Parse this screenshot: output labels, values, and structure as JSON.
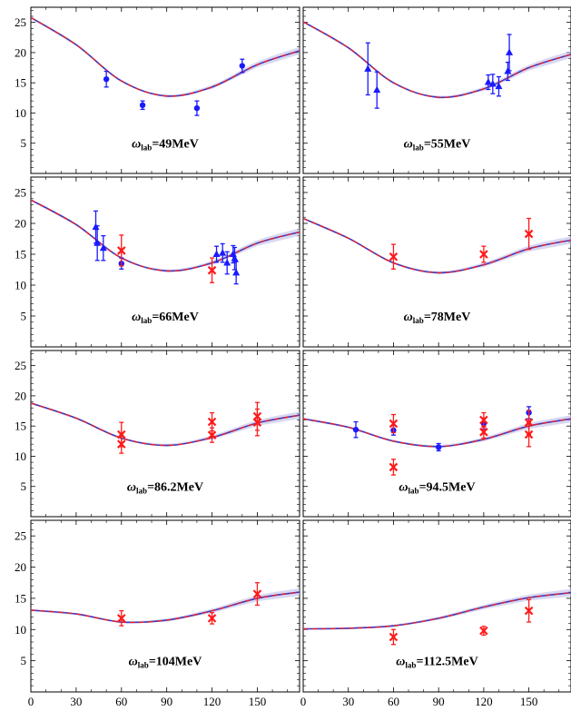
{
  "chart_data": {
    "type": "scatter",
    "layout": "4x2 grid of panels",
    "x_ticks": [
      "0",
      "30",
      "60",
      "90",
      "120",
      "150"
    ],
    "y_ticks": [
      "5",
      "10",
      "15",
      "20",
      "25"
    ],
    "xlim": [
      0,
      178
    ],
    "ylim": [
      0,
      27.5
    ],
    "grid": false,
    "colors": {
      "curve_red": "#e8202a",
      "curve_blue": "#3838c8",
      "band": "#b8b8e8",
      "data_blue": "#1a1aff",
      "data_red": "#ff1a1a"
    },
    "panels": [
      {
        "label_symbol": "ω",
        "label_sub": "lab",
        "label_value": "=49MeV",
        "curve": [
          [
            0,
            25.8
          ],
          [
            30,
            21.3
          ],
          [
            60,
            15.3
          ],
          [
            90,
            12.8
          ],
          [
            120,
            14.3
          ],
          [
            150,
            18.0
          ],
          [
            178,
            20.3
          ]
        ],
        "series": [
          {
            "color": "blue",
            "marker": "circle",
            "points": [
              [
                50,
                15.6,
                1.3
              ],
              [
                74,
                11.3,
                0.7
              ],
              [
                110,
                10.8,
                1.2
              ],
              [
                140,
                17.8,
                1.1
              ]
            ]
          }
        ]
      },
      {
        "label_symbol": "ω",
        "label_sub": "lab",
        "label_value": "=55MeV",
        "curve": [
          [
            0,
            25.1
          ],
          [
            30,
            20.8
          ],
          [
            60,
            15.0
          ],
          [
            90,
            12.6
          ],
          [
            120,
            14.0
          ],
          [
            150,
            17.5
          ],
          [
            178,
            19.7
          ]
        ],
        "series": [
          {
            "color": "blue",
            "marker": "triangle",
            "points": [
              [
                43,
                17.3,
                4.3
              ],
              [
                49,
                13.8,
                3.0
              ],
              [
                123,
                15.1,
                1.2
              ],
              [
                126,
                14.8,
                1.6
              ],
              [
                130,
                14.4,
                1.6
              ],
              [
                136,
                16.9,
                1.5
              ],
              [
                137,
                20.0,
                3.0
              ]
            ]
          }
        ]
      },
      {
        "label_symbol": "ω",
        "label_sub": "lab",
        "label_value": "=66MeV",
        "curve": [
          [
            0,
            23.8
          ],
          [
            30,
            19.8
          ],
          [
            60,
            14.4
          ],
          [
            90,
            12.3
          ],
          [
            120,
            13.6
          ],
          [
            150,
            16.8
          ],
          [
            178,
            18.6
          ]
        ],
        "series": [
          {
            "color": "blue",
            "marker": "triangle",
            "points": [
              [
                43,
                19.4,
                2.6
              ],
              [
                44,
                16.8,
                2.8
              ],
              [
                48,
                16.0,
                2.0
              ],
              [
                123,
                15.0,
                1.3
              ],
              [
                127,
                15.2,
                1.5
              ],
              [
                130,
                13.6,
                1.8
              ],
              [
                134,
                15.0,
                1.4
              ],
              [
                135,
                14.3,
                1.8
              ],
              [
                136,
                12.0,
                1.8
              ]
            ]
          },
          {
            "color": "blue",
            "marker": "circle",
            "points": [
              [
                60,
                13.5,
                0.9
              ]
            ]
          },
          {
            "color": "red",
            "marker": "x",
            "points": [
              [
                60,
                15.6,
                2.5
              ],
              [
                120,
                12.4,
                2.0
              ]
            ]
          }
        ]
      },
      {
        "label_symbol": "ω",
        "label_sub": "lab",
        "label_value": "=78MeV",
        "curve": [
          [
            0,
            20.8
          ],
          [
            30,
            17.6
          ],
          [
            60,
            13.6
          ],
          [
            90,
            12.0
          ],
          [
            120,
            13.3
          ],
          [
            150,
            15.9
          ],
          [
            178,
            17.3
          ]
        ],
        "series": [
          {
            "color": "red",
            "marker": "x",
            "points": [
              [
                60,
                14.6,
                2.0
              ],
              [
                120,
                15.0,
                1.3
              ],
              [
                150,
                18.3,
                2.5
              ]
            ]
          }
        ]
      },
      {
        "label_symbol": "ω",
        "label_sub": "lab",
        "label_value": "=86.2MeV",
        "curve": [
          [
            0,
            18.8
          ],
          [
            30,
            16.3
          ],
          [
            60,
            13.0
          ],
          [
            90,
            11.8
          ],
          [
            120,
            13.1
          ],
          [
            150,
            15.5
          ],
          [
            178,
            16.8
          ]
        ],
        "series": [
          {
            "color": "red",
            "marker": "x",
            "points": [
              [
                60,
                13.6,
                2.0
              ],
              [
                60,
                12.0,
                1.5
              ],
              [
                120,
                15.7,
                1.5
              ],
              [
                120,
                13.5,
                1.2
              ],
              [
                150,
                16.6,
                2.3
              ],
              [
                150,
                15.6,
                2.2
              ]
            ]
          }
        ]
      },
      {
        "label_symbol": "ω",
        "label_sub": "lab",
        "label_value": "=94.5MeV",
        "curve": [
          [
            0,
            16.2
          ],
          [
            30,
            14.8
          ],
          [
            60,
            12.5
          ],
          [
            90,
            11.6
          ],
          [
            120,
            12.8
          ],
          [
            150,
            15.0
          ],
          [
            178,
            16.2
          ]
        ],
        "series": [
          {
            "color": "blue",
            "marker": "circle",
            "points": [
              [
                35,
                14.4,
                1.3
              ],
              [
                60,
                14.3,
                0.8
              ],
              [
                90,
                11.5,
                0.6
              ],
              [
                120,
                15.4,
                0.9
              ],
              [
                150,
                17.2,
                1.0
              ]
            ]
          },
          {
            "color": "red",
            "marker": "x",
            "points": [
              [
                60,
                15.4,
                1.5
              ],
              [
                60,
                8.2,
                1.3
              ],
              [
                120,
                16.0,
                1.2
              ],
              [
                120,
                14.0,
                1.0
              ],
              [
                150,
                15.6,
                2.0
              ],
              [
                150,
                13.6,
                2.0
              ]
            ]
          }
        ]
      },
      {
        "label_symbol": "ω",
        "label_sub": "lab",
        "label_value": "=104MeV",
        "curve": [
          [
            0,
            13.1
          ],
          [
            30,
            12.5
          ],
          [
            60,
            11.2
          ],
          [
            90,
            11.5
          ],
          [
            120,
            13.0
          ],
          [
            150,
            15.0
          ],
          [
            178,
            16.0
          ]
        ],
        "series": [
          {
            "color": "red",
            "marker": "x",
            "points": [
              [
                60,
                11.8,
                1.2
              ],
              [
                120,
                11.8,
                0.9
              ],
              [
                150,
                15.7,
                1.8
              ]
            ]
          }
        ]
      },
      {
        "label_symbol": "ω",
        "label_sub": "lab",
        "label_value": "=112.5MeV",
        "curve": [
          [
            0,
            10.1
          ],
          [
            30,
            10.2
          ],
          [
            60,
            10.6
          ],
          [
            90,
            11.8
          ],
          [
            120,
            13.6
          ],
          [
            150,
            15.1
          ],
          [
            178,
            15.9
          ]
        ],
        "series": [
          {
            "color": "red",
            "marker": "x",
            "points": [
              [
                60,
                8.8,
                1.2
              ],
              [
                120,
                9.8,
                0.7
              ],
              [
                150,
                13.0,
                1.8
              ]
            ]
          }
        ]
      }
    ]
  }
}
